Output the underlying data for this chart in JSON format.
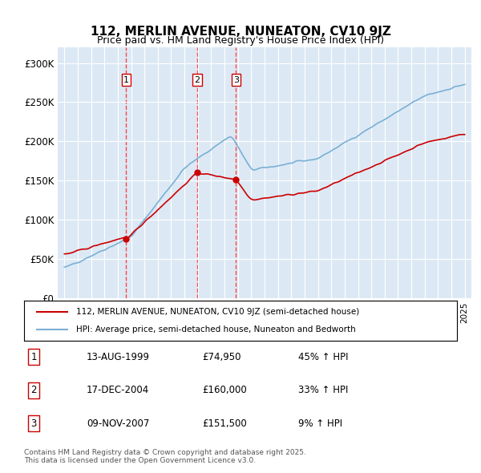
{
  "title": "112, MERLIN AVENUE, NUNEATON, CV10 9JZ",
  "subtitle": "Price paid vs. HM Land Registry's House Price Index (HPI)",
  "bg_color": "#dce9f5",
  "plot_bg_color": "#dce9f5",
  "red_color": "#cc0000",
  "blue_color": "#7ab0d4",
  "sale_color": "#cc0000",
  "vline_color": "#ff4444",
  "ylim": [
    0,
    320000
  ],
  "yticks": [
    0,
    50000,
    100000,
    150000,
    200000,
    250000,
    300000
  ],
  "ytick_labels": [
    "£0",
    "£50K",
    "£100K",
    "£150K",
    "£200K",
    "£250K",
    "£300K"
  ],
  "sales": [
    {
      "label": "1",
      "date_str": "13-AUG-1999",
      "price": 74950,
      "year": 1999.62
    },
    {
      "label": "2",
      "date_str": "17-DEC-2004",
      "price": 160000,
      "year": 2004.96
    },
    {
      "label": "3",
      "date_str": "09-NOV-2007",
      "price": 151500,
      "year": 2007.86
    }
  ],
  "legend_line1": "112, MERLIN AVENUE, NUNEATON, CV10 9JZ (semi-detached house)",
  "legend_line2": "HPI: Average price, semi-detached house, Nuneaton and Bedworth",
  "table_rows": [
    [
      "1",
      "13-AUG-1999",
      "£74,950",
      "45% ↑ HPI"
    ],
    [
      "2",
      "17-DEC-2004",
      "£160,000",
      "33% ↑ HPI"
    ],
    [
      "3",
      "09-NOV-2007",
      "£151,500",
      "9% ↑ HPI"
    ]
  ],
  "footer": "Contains HM Land Registry data © Crown copyright and database right 2025.\nThis data is licensed under the Open Government Licence v3.0.",
  "xmin": 1994.5,
  "xmax": 2025.5
}
